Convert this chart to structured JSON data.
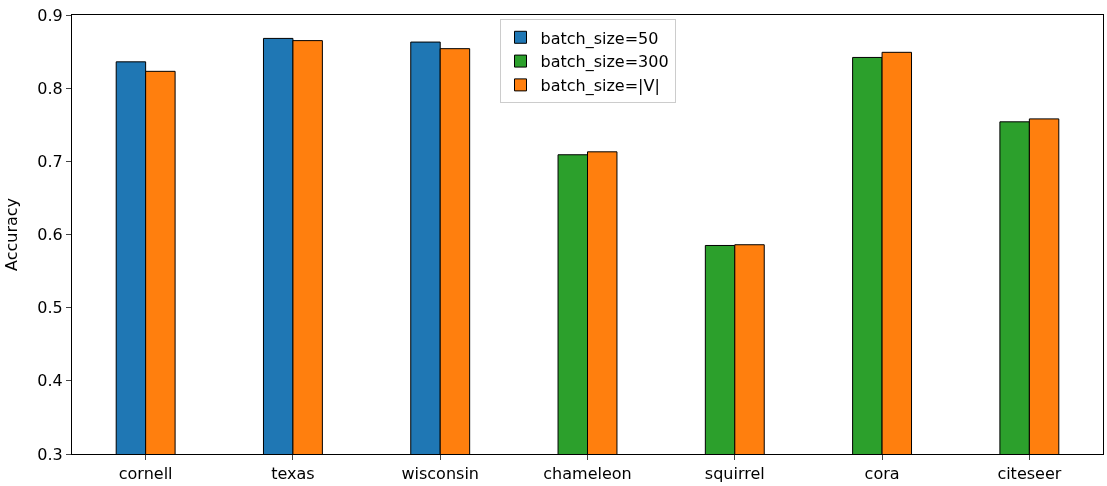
{
  "chart_data": {
    "type": "bar",
    "ylabel": "Accuracy",
    "categories": [
      "cornell",
      "texas",
      "wisconsin",
      "chameleon",
      "squirrel",
      "cora",
      "citeseer"
    ],
    "series": [
      {
        "name": "batch_size=50",
        "color": "#1f77b4",
        "values": [
          0.836,
          0.868,
          0.863,
          null,
          null,
          null,
          null
        ]
      },
      {
        "name": "batch_size=300",
        "color": "#2ca02c",
        "values": [
          null,
          null,
          null,
          0.709,
          0.585,
          0.842,
          0.754
        ]
      },
      {
        "name": "batch_size=|V|",
        "color": "#ff7f0e",
        "values": [
          0.823,
          0.865,
          0.854,
          0.713,
          0.586,
          0.849,
          0.758
        ]
      }
    ],
    "ylim": [
      0.3,
      0.9
    ],
    "yticks": [
      0.3,
      0.4,
      0.5,
      0.6,
      0.7,
      0.8,
      0.9
    ],
    "legend": "top"
  }
}
